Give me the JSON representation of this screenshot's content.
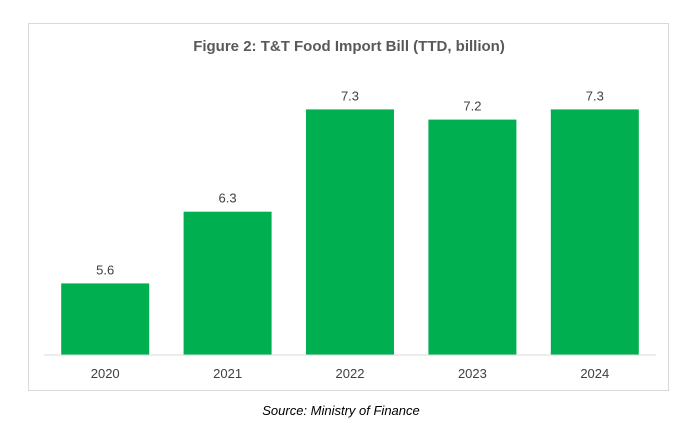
{
  "chart_data": {
    "type": "bar",
    "title": "Figure 2: T&T Food Import Bill (TTD, billion)",
    "categories": [
      "2020",
      "2021",
      "2022",
      "2023",
      "2024"
    ],
    "values": [
      5.6,
      6.3,
      7.3,
      7.2,
      7.3
    ],
    "data_labels": [
      "5.6",
      "6.3",
      "7.3",
      "7.2",
      "7.3"
    ],
    "xlabel": "",
    "ylabel": "",
    "ylim": [
      4.9,
      7.45
    ],
    "grid": false,
    "legend": "none",
    "bar_color": "#00b050",
    "axis_color": "#d9d9d9"
  },
  "source": "Source: Ministry of Finance"
}
